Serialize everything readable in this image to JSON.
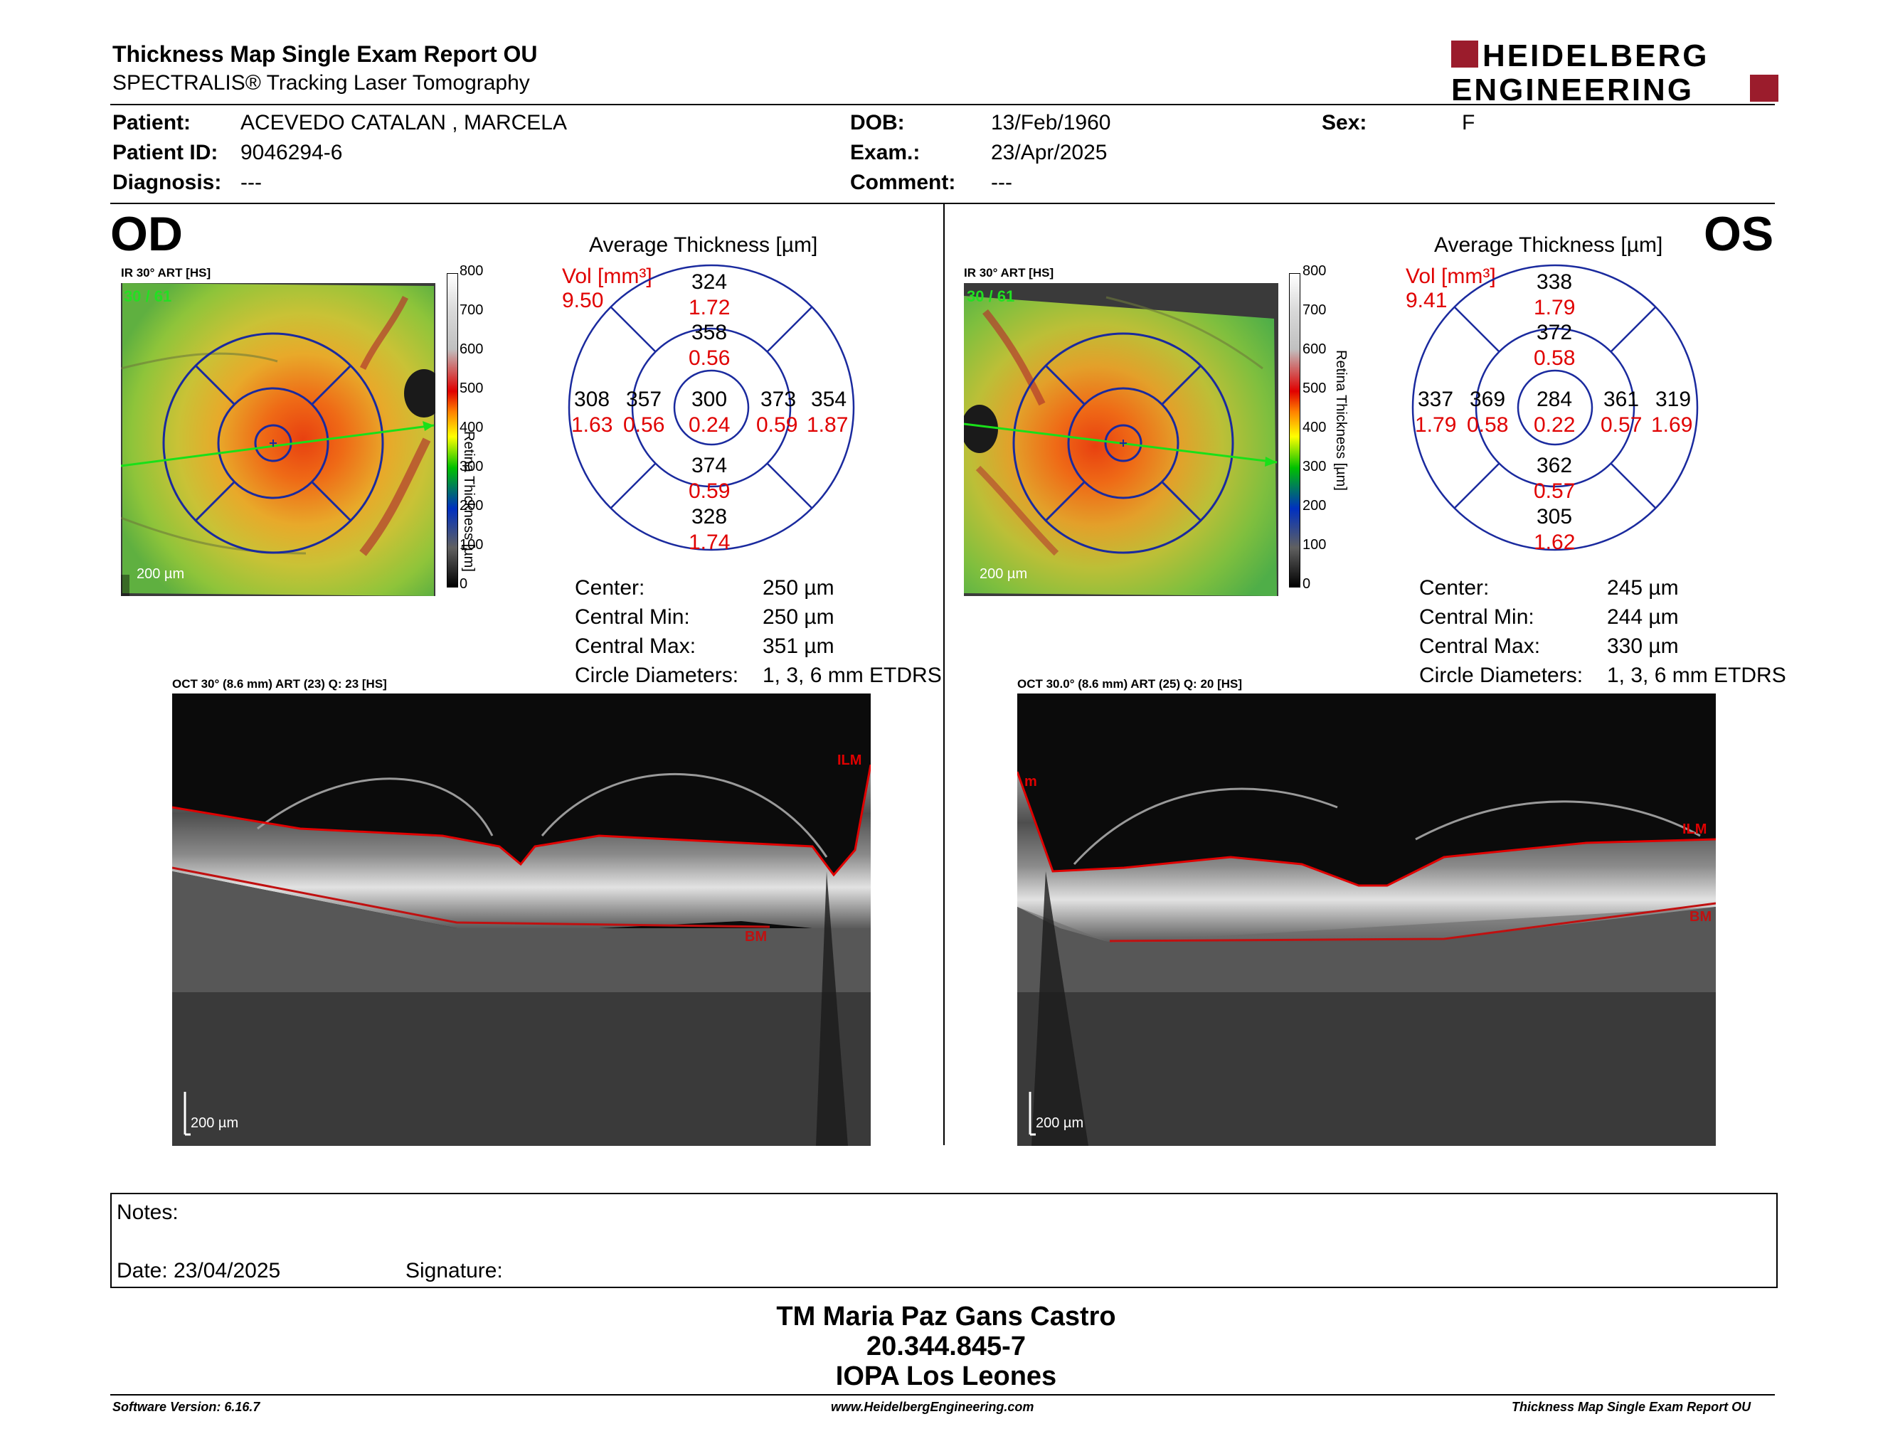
{
  "header": {
    "title": "Thickness Map Single Exam Report OU",
    "subtitle": "SPECTRALIS® Tracking Laser Tomography",
    "logo_line1": "HEIDELBERG",
    "logo_line2": "ENGINEERING",
    "brand_color": "#9b1c2c"
  },
  "patient": {
    "patient_label": "Patient:",
    "patient_value": "ACEVEDO CATALAN , MARCELA",
    "id_label": "Patient ID:",
    "id_value": "9046294-6",
    "diagnosis_label": "Diagnosis:",
    "diagnosis_value": "---",
    "dob_label": "DOB:",
    "dob_value": "13/Feb/1960",
    "exam_label": "Exam.:",
    "exam_value": "23/Apr/2025",
    "comment_label": "Comment:",
    "comment_value": "---",
    "sex_label": "Sex:",
    "sex_value": "F"
  },
  "colorbar": {
    "ticks": [
      "800",
      "700",
      "600",
      "500",
      "400",
      "300",
      "200",
      "100",
      "0"
    ],
    "label": "Retina Thickness [µm]"
  },
  "od": {
    "eye": "OD",
    "fundus_label": "IR 30° ART [HS]",
    "fundus_frames": "30 / 61",
    "fundus_scale": "200 µm",
    "avg_title": "Average Thickness [µm]",
    "vol_label": "Vol [mm³]",
    "vol_value": "9.50",
    "grid": {
      "center": {
        "t": "300",
        "v": "0.24"
      },
      "inner_sup": {
        "t": "358",
        "v": "0.56"
      },
      "inner_inf": {
        "t": "374",
        "v": "0.59"
      },
      "inner_temp": {
        "t": "357",
        "v": "0.56"
      },
      "inner_nas": {
        "t": "373",
        "v": "0.59"
      },
      "outer_sup": {
        "t": "324",
        "v": "1.72"
      },
      "outer_inf": {
        "t": "328",
        "v": "1.74"
      },
      "outer_temp": {
        "t": "308",
        "v": "1.63"
      },
      "outer_nas": {
        "t": "354",
        "v": "1.87"
      }
    },
    "stats": [
      {
        "label": "Center:",
        "value": "250 µm"
      },
      {
        "label": "Central Min:",
        "value": "250 µm"
      },
      {
        "label": "Central Max:",
        "value": "351 µm"
      },
      {
        "label": "Circle Diameters:",
        "value": "1, 3, 6 mm ETDRS"
      }
    ],
    "oct_label": "OCT 30° (8.6 mm) ART (23) Q: 23 [HS]",
    "oct_ilm": "ILM",
    "oct_bm": "BM",
    "oct_scale": "200 µm"
  },
  "os": {
    "eye": "OS",
    "fundus_label": "IR 30° ART [HS]",
    "fundus_frames": "30 / 61",
    "fundus_scale": "200 µm",
    "avg_title": "Average Thickness [µm]",
    "vol_label": "Vol [mm³]",
    "vol_value": "9.41",
    "grid": {
      "center": {
        "t": "284",
        "v": "0.22"
      },
      "inner_sup": {
        "t": "372",
        "v": "0.58"
      },
      "inner_inf": {
        "t": "362",
        "v": "0.57"
      },
      "inner_temp": {
        "t": "369",
        "v": "0.58"
      },
      "inner_nas": {
        "t": "361",
        "v": "0.57"
      },
      "outer_sup": {
        "t": "338",
        "v": "1.79"
      },
      "outer_inf": {
        "t": "305",
        "v": "1.62"
      },
      "outer_temp": {
        "t": "337",
        "v": "1.79"
      },
      "outer_nas": {
        "t": "319",
        "v": "1.69"
      }
    },
    "stats": [
      {
        "label": "Center:",
        "value": "245 µm"
      },
      {
        "label": "Central Min:",
        "value": "244 µm"
      },
      {
        "label": "Central Max:",
        "value": "330 µm"
      },
      {
        "label": "Circle Diameters:",
        "value": "1, 3, 6 mm ETDRS"
      }
    ],
    "oct_label": "OCT 30.0° (8.6 mm) ART (25) Q: 20 [HS]",
    "oct_ilm": "ILM",
    "oct_ilm_left": "m",
    "oct_bm": "BM",
    "oct_scale": "200 µm"
  },
  "notes": {
    "notes_label": "Notes:",
    "date_label": "Date: 23/04/2025",
    "signature_label": "Signature:"
  },
  "technician": {
    "name": "TM Maria Paz Gans Castro",
    "id": "20.344.845-7",
    "place": "IOPA Los Leones"
  },
  "footer": {
    "software": "Software Version: 6.16.7",
    "website": "www.HeidelbergEngineering.com",
    "report_name": "Thickness Map Single Exam Report OU"
  }
}
